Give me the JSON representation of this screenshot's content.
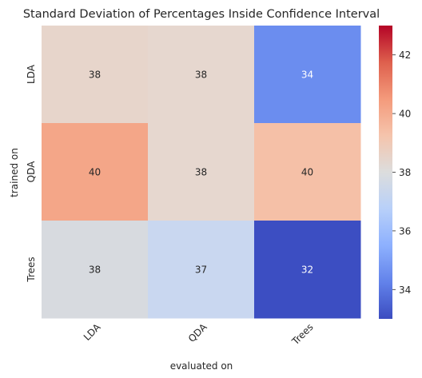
{
  "chart_data": {
    "type": "heatmap",
    "title": "Standard Deviation of Percentages Inside Confidence Interval",
    "xlabel": "evaluated on",
    "ylabel": "trained on",
    "x_categories": [
      "LDA",
      "QDA",
      "Trees"
    ],
    "y_categories": [
      "LDA",
      "QDA",
      "Trees"
    ],
    "values": [
      [
        38,
        38,
        34
      ],
      [
        40,
        38,
        40
      ],
      [
        38,
        37,
        32
      ]
    ],
    "annotations": [
      [
        "38",
        "38",
        "34"
      ],
      [
        "40",
        "38",
        "40"
      ],
      [
        "38",
        "37",
        "32"
      ]
    ],
    "colormap": "coolwarm",
    "color_range": [
      33,
      43
    ],
    "colorbar_ticks": [
      "34",
      "36",
      "38",
      "40",
      "42"
    ],
    "colorbar_tick_values": [
      34,
      36,
      38,
      40,
      42
    ],
    "cell_colors": [
      [
        "#e7d5cb",
        "#e6d7cf",
        "#6b8def"
      ],
      [
        "#f4a688",
        "#e6d7cf",
        "#f5c0a7"
      ],
      [
        "#d7dadf",
        "#c9d7f0",
        "#3c4ec2"
      ]
    ],
    "colorbar_stops": [
      "#3b4cc0",
      "#6282ea",
      "#8db0fe",
      "#b8d0f9",
      "#dcdddd",
      "#f5c4ac",
      "#f49a7b",
      "#de604d",
      "#b40426"
    ]
  }
}
